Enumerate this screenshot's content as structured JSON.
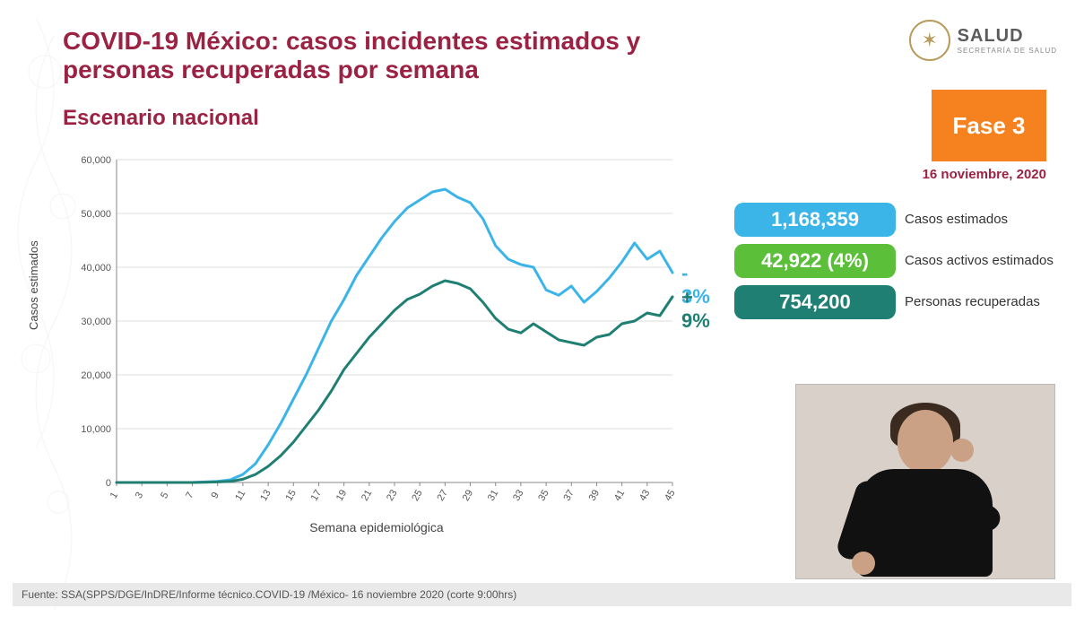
{
  "header": {
    "title": "COVID-19 México: casos incidentes estimados y personas recuperadas por semana",
    "subtitle": "Escenario nacional",
    "logo_main": "SALUD",
    "logo_sub": "SECRETARÍA DE SALUD"
  },
  "phase": {
    "label": "Fase 3",
    "background": "#f5821f",
    "text_color": "#ffffff"
  },
  "date": "16 noviembre, 2020",
  "stats": [
    {
      "value": "1,168,359",
      "label": "Casos estimados",
      "color": "#3bb4e8"
    },
    {
      "value": "42,922 (4%)",
      "label": "Casos activos estimados",
      "color": "#5bbf3a"
    },
    {
      "value": "754,200",
      "label": "Personas recuperadas",
      "color": "#1f7f72"
    }
  ],
  "chart": {
    "type": "line",
    "y_axis_title": "Casos estimados",
    "x_axis_title": "Semana epidemiológica",
    "ylim": [
      0,
      60000
    ],
    "ytick_step": 10000,
    "y_ticks": [
      "0",
      "10,000",
      "20,000",
      "30,000",
      "40,000",
      "50,000",
      "60,000"
    ],
    "x_ticks": [
      1,
      3,
      5,
      7,
      9,
      11,
      13,
      15,
      17,
      19,
      21,
      23,
      25,
      27,
      29,
      31,
      33,
      35,
      37,
      39,
      41,
      43,
      45
    ],
    "x_values": [
      1,
      2,
      3,
      4,
      5,
      6,
      7,
      8,
      9,
      10,
      11,
      12,
      13,
      14,
      15,
      16,
      17,
      18,
      19,
      20,
      21,
      22,
      23,
      24,
      25,
      26,
      27,
      28,
      29,
      30,
      31,
      32,
      33,
      34,
      35,
      36,
      37,
      38,
      39,
      40,
      41,
      42,
      43,
      44,
      45
    ],
    "background_color": "#ffffff",
    "grid_color": "#dddddd",
    "axis_color": "#888888",
    "tick_fontsize": 11,
    "axis_label_fontsize": 13,
    "line_width": 3,
    "series": [
      {
        "name": "casos_estimados",
        "color": "#3bb4e8",
        "annotation": "- 3%",
        "annotation_color": "#3bb4e8",
        "values": [
          0,
          0,
          0,
          0,
          0,
          0,
          0,
          100,
          200,
          500,
          1500,
          3500,
          7000,
          11000,
          15500,
          20000,
          25000,
          30000,
          34000,
          38500,
          42000,
          45500,
          48500,
          51000,
          52500,
          54000,
          54500,
          53000,
          52000,
          49000,
          44000,
          41500,
          40500,
          40000,
          35800,
          34800,
          36500,
          33500,
          35500,
          38000,
          41000,
          44500,
          41500,
          43000,
          39000
        ]
      },
      {
        "name": "recuperados",
        "color": "#1f7f72",
        "annotation": "+ 9%",
        "annotation_color": "#1f7f72",
        "values": [
          0,
          0,
          0,
          0,
          0,
          0,
          0,
          50,
          100,
          200,
          600,
          1500,
          3000,
          5000,
          7500,
          10500,
          13500,
          17000,
          21000,
          24000,
          27000,
          29500,
          32000,
          34000,
          35000,
          36500,
          37500,
          37000,
          36000,
          33500,
          30500,
          28500,
          27800,
          29500,
          28000,
          26500,
          26000,
          25500,
          27000,
          27500,
          29500,
          30000,
          31500,
          31000,
          34500
        ]
      }
    ]
  },
  "footer": "Fuente: SSA(SPPS/DGE/InDRE/Informe técnico.COVID-19 /México- 16 noviembre 2020 (corte 9:00hrs)",
  "colors": {
    "title": "#9b2242",
    "brand_gold": "#b89a5b"
  }
}
